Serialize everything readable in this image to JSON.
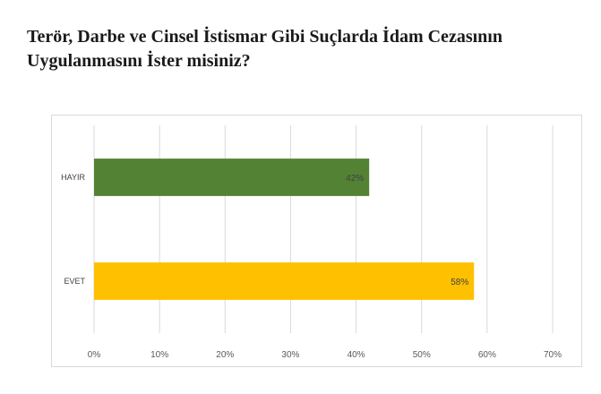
{
  "page": {
    "title_line1": "Terör, Darbe ve Cinsel İstismar Gibi Suçlarda İdam Cezasının",
    "title_line2": "Uygulanmasını İster misiniz?"
  },
  "chart_data": {
    "type": "bar",
    "orientation": "horizontal",
    "categories": [
      "HAYIR",
      "EVET"
    ],
    "values": [
      42,
      58
    ],
    "data_labels": [
      "42%",
      "58%"
    ],
    "colors": [
      "#548235",
      "#ffc000"
    ],
    "xlim": [
      0,
      70
    ],
    "x_ticks": [
      "0%",
      "10%",
      "20%",
      "30%",
      "40%",
      "50%",
      "60%",
      "70%"
    ],
    "grid": true,
    "legend": "none"
  }
}
